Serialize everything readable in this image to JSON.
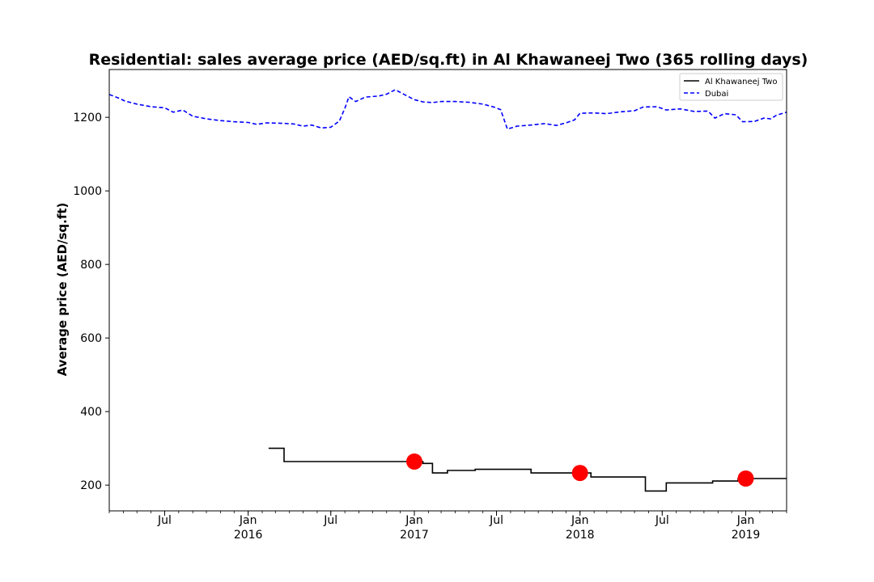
{
  "chart_data": {
    "type": "line",
    "title": "Residential: sales average price (AED/sq.ft) in Al Khawaneej Two (365 rolling days)",
    "xlabel": "",
    "ylabel": "Average price (AED/sq.ft)",
    "xlim": [
      "2015-03-01",
      "2019-04-01"
    ],
    "ylim": [
      130,
      1330
    ],
    "grid": false,
    "legend": "top-right",
    "x_ticks_major": [
      {
        "date": "2015-07-01",
        "label": "Jul",
        "year": ""
      },
      {
        "date": "2016-01-01",
        "label": "Jan",
        "year": "2016"
      },
      {
        "date": "2016-07-01",
        "label": "Jul",
        "year": ""
      },
      {
        "date": "2017-01-01",
        "label": "Jan",
        "year": "2017"
      },
      {
        "date": "2017-07-01",
        "label": "Jul",
        "year": ""
      },
      {
        "date": "2018-01-01",
        "label": "Jan",
        "year": "2018"
      },
      {
        "date": "2018-07-01",
        "label": "Jul",
        "year": ""
      },
      {
        "date": "2019-01-01",
        "label": "Jan",
        "year": "2019"
      }
    ],
    "y_ticks": [
      200,
      400,
      600,
      800,
      1000,
      1200
    ],
    "series": [
      {
        "name": "Al Khawaneej Two",
        "color": "#000000",
        "style": "solid",
        "drawstyle": "steps-post",
        "points": [
          [
            "2016-02-15",
            300
          ],
          [
            "2016-03-20",
            264
          ],
          [
            "2017-01-20",
            259
          ],
          [
            "2017-02-10",
            233
          ],
          [
            "2017-03-15",
            240
          ],
          [
            "2017-05-15",
            243
          ],
          [
            "2017-09-15",
            233
          ],
          [
            "2018-01-25",
            222
          ],
          [
            "2018-05-25",
            184
          ],
          [
            "2018-07-10",
            206
          ],
          [
            "2018-10-20",
            211
          ],
          [
            "2018-12-15",
            218
          ],
          [
            "2019-04-01",
            218
          ]
        ]
      },
      {
        "name": "Dubai",
        "color": "#0000ff",
        "style": "dashed",
        "points": [
          [
            "2015-03-01",
            1262
          ],
          [
            "2015-03-20",
            1253
          ],
          [
            "2015-04-05",
            1244
          ],
          [
            "2015-05-01",
            1236
          ],
          [
            "2015-06-01",
            1229
          ],
          [
            "2015-07-01",
            1226
          ],
          [
            "2015-07-20",
            1214
          ],
          [
            "2015-08-10",
            1220
          ],
          [
            "2015-09-01",
            1203
          ],
          [
            "2015-10-01",
            1196
          ],
          [
            "2015-11-01",
            1191
          ],
          [
            "2015-12-01",
            1188
          ],
          [
            "2016-01-01",
            1186
          ],
          [
            "2016-01-20",
            1181
          ],
          [
            "2016-02-10",
            1185
          ],
          [
            "2016-03-10",
            1184
          ],
          [
            "2016-04-10",
            1182
          ],
          [
            "2016-05-01",
            1176
          ],
          [
            "2016-05-20",
            1179
          ],
          [
            "2016-06-10",
            1171
          ],
          [
            "2016-07-01",
            1173
          ],
          [
            "2016-07-20",
            1190
          ],
          [
            "2016-08-01",
            1225
          ],
          [
            "2016-08-10",
            1256
          ],
          [
            "2016-08-25",
            1243
          ],
          [
            "2016-09-15",
            1255
          ],
          [
            "2016-10-15",
            1258
          ],
          [
            "2016-11-01",
            1263
          ],
          [
            "2016-11-20",
            1275
          ],
          [
            "2016-12-10",
            1262
          ],
          [
            "2017-01-01",
            1248
          ],
          [
            "2017-01-20",
            1242
          ],
          [
            "2017-02-10",
            1240
          ],
          [
            "2017-03-01",
            1243
          ],
          [
            "2017-04-01",
            1243
          ],
          [
            "2017-05-01",
            1241
          ],
          [
            "2017-06-01",
            1236
          ],
          [
            "2017-06-25",
            1228
          ],
          [
            "2017-07-10",
            1221
          ],
          [
            "2017-07-25",
            1168
          ],
          [
            "2017-08-15",
            1176
          ],
          [
            "2017-09-15",
            1179
          ],
          [
            "2017-10-15",
            1183
          ],
          [
            "2017-11-10",
            1178
          ],
          [
            "2017-12-01",
            1185
          ],
          [
            "2017-12-20",
            1193
          ],
          [
            "2018-01-01",
            1211
          ],
          [
            "2018-02-01",
            1212
          ],
          [
            "2018-03-01",
            1210
          ],
          [
            "2018-04-01",
            1215
          ],
          [
            "2018-05-01",
            1218
          ],
          [
            "2018-05-20",
            1228
          ],
          [
            "2018-06-20",
            1229
          ],
          [
            "2018-07-10",
            1220
          ],
          [
            "2018-08-10",
            1223
          ],
          [
            "2018-09-10",
            1216
          ],
          [
            "2018-10-10",
            1217
          ],
          [
            "2018-10-25",
            1198
          ],
          [
            "2018-11-15",
            1210
          ],
          [
            "2018-12-10",
            1207
          ],
          [
            "2018-12-25",
            1188
          ],
          [
            "2019-01-20",
            1189
          ],
          [
            "2019-02-10",
            1198
          ],
          [
            "2019-02-25",
            1196
          ],
          [
            "2019-03-10",
            1206
          ],
          [
            "2019-04-01",
            1214
          ]
        ]
      }
    ],
    "markers": {
      "series": "Al Khawaneej Two",
      "color": "#ff0000",
      "points": [
        [
          "2017-01-01",
          264
        ],
        [
          "2018-01-01",
          233
        ],
        [
          "2019-01-01",
          218
        ]
      ]
    }
  }
}
